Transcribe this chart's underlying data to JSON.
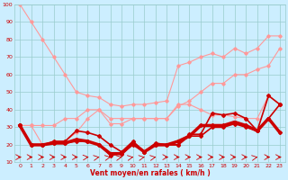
{
  "xlabel": "Vent moyen/en rafales ( km/h )",
  "xlim": [
    -0.5,
    23.5
  ],
  "ylim": [
    10,
    100
  ],
  "yticks": [
    10,
    20,
    30,
    40,
    50,
    60,
    70,
    80,
    90,
    100
  ],
  "xticks": [
    0,
    1,
    2,
    3,
    4,
    5,
    6,
    7,
    8,
    9,
    10,
    11,
    12,
    13,
    14,
    15,
    16,
    17,
    18,
    19,
    20,
    21,
    22,
    23
  ],
  "bg_color": "#cceeff",
  "grid_color": "#99cccc",
  "text_color": "#cc0000",
  "series": [
    {
      "x": [
        0,
        1,
        2,
        3,
        4,
        5,
        6,
        7,
        8,
        9,
        10,
        11,
        12,
        13,
        14,
        15,
        16,
        17,
        18,
        19,
        20,
        21,
        22,
        23
      ],
      "y": [
        100,
        90,
        80,
        70,
        60,
        50,
        48,
        47,
        43,
        42,
        43,
        43,
        44,
        45,
        65,
        67,
        70,
        72,
        70,
        75,
        72,
        75,
        82,
        82
      ],
      "color": "#ff9999",
      "lw": 0.8,
      "marker": "D",
      "ms": 1.8,
      "zorder": 2
    },
    {
      "x": [
        0,
        1,
        2,
        3,
        4,
        5,
        6,
        7,
        8,
        9,
        10,
        11,
        12,
        13,
        14,
        15,
        16,
        17,
        18,
        19,
        20,
        21,
        22,
        23
      ],
      "y": [
        31,
        31,
        31,
        31,
        35,
        35,
        40,
        40,
        35,
        35,
        35,
        35,
        35,
        35,
        42,
        45,
        50,
        55,
        55,
        60,
        60,
        63,
        65,
        75
      ],
      "color": "#ff9999",
      "lw": 0.8,
      "marker": "D",
      "ms": 1.8,
      "zorder": 2
    },
    {
      "x": [
        0,
        1,
        2,
        3,
        4,
        5,
        6,
        7,
        8,
        9,
        10,
        11,
        12,
        13,
        14,
        15,
        16,
        17,
        18,
        19,
        20,
        21,
        22,
        23
      ],
      "y": [
        31,
        31,
        20,
        22,
        22,
        27,
        35,
        40,
        32,
        32,
        35,
        35,
        35,
        35,
        43,
        43,
        40,
        37,
        37,
        36,
        35,
        35,
        48,
        43
      ],
      "color": "#ff9999",
      "lw": 0.8,
      "marker": "D",
      "ms": 1.8,
      "zorder": 2
    },
    {
      "x": [
        0,
        1,
        2,
        3,
        4,
        5,
        6,
        7,
        8,
        9,
        10,
        11,
        12,
        13,
        14,
        15,
        16,
        17,
        18,
        19,
        20,
        21,
        22,
        23
      ],
      "y": [
        31,
        20,
        20,
        22,
        22,
        28,
        27,
        25,
        20,
        16,
        22,
        16,
        21,
        20,
        20,
        26,
        26,
        38,
        37,
        38,
        35,
        28,
        48,
        43
      ],
      "color": "#cc0000",
      "lw": 1.2,
      "marker": "D",
      "ms": 2.0,
      "zorder": 3
    },
    {
      "x": [
        0,
        1,
        2,
        3,
        4,
        5,
        6,
        7,
        8,
        9,
        10,
        11,
        12,
        13,
        14,
        15,
        16,
        17,
        18,
        19,
        20,
        21,
        22,
        23
      ],
      "y": [
        31,
        20,
        20,
        21,
        21,
        23,
        22,
        20,
        15,
        15,
        21,
        16,
        20,
        20,
        22,
        25,
        31,
        31,
        31,
        33,
        31,
        28,
        35,
        27
      ],
      "color": "#cc0000",
      "lw": 2.5,
      "marker": "D",
      "ms": 2.0,
      "zorder": 4
    },
    {
      "x": [
        0,
        1,
        2,
        3,
        4,
        5,
        6,
        7,
        8,
        9,
        10,
        11,
        12,
        13,
        14,
        15,
        16,
        17,
        18,
        19,
        20,
        21,
        22,
        23
      ],
      "y": [
        31,
        20,
        20,
        21,
        21,
        22,
        22,
        20,
        14,
        15,
        20,
        16,
        20,
        20,
        20,
        25,
        25,
        30,
        30,
        32,
        30,
        28,
        35,
        43
      ],
      "color": "#cc0000",
      "lw": 1.2,
      "marker": "D",
      "ms": 2.0,
      "zorder": 3
    }
  ],
  "arrows": {
    "y": 13,
    "angles_deg": [
      0,
      0,
      0,
      0,
      0,
      0,
      30,
      45,
      45,
      45,
      45,
      45,
      45,
      0,
      0,
      0,
      0,
      0,
      0,
      0,
      0,
      45,
      0,
      0
    ]
  }
}
